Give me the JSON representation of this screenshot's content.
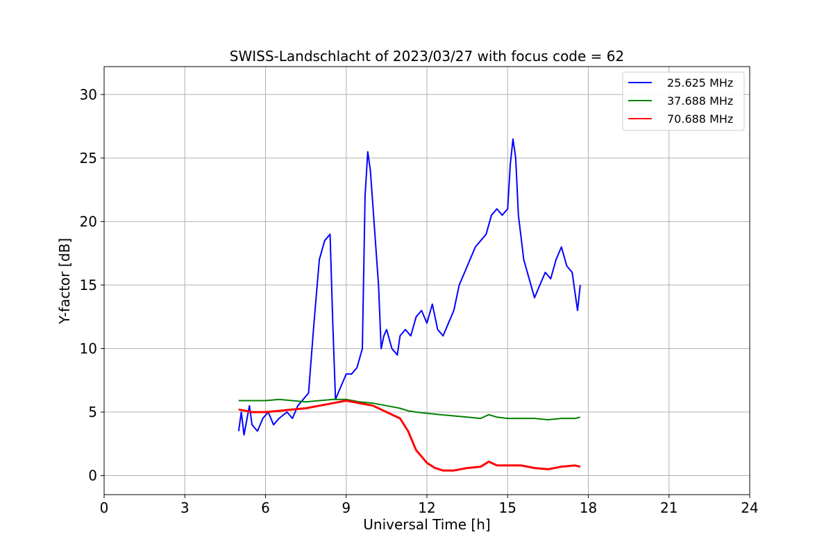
{
  "chart_data": {
    "type": "line",
    "title": "SWISS-Landschlacht of 2023/03/27 with focus code = 62",
    "xlabel": "Universal Time [h]",
    "ylabel": "Y-factor [dB]",
    "xlim": [
      0,
      24
    ],
    "ylim": [
      -1.5,
      32.2
    ],
    "xticks": [
      0,
      3,
      6,
      9,
      12,
      15,
      18,
      21,
      24
    ],
    "yticks": [
      0,
      5,
      10,
      15,
      20,
      25,
      30
    ],
    "grid": true,
    "legend_position": "top-right",
    "series": [
      {
        "name": "25.625 MHz",
        "color": "#0000ff",
        "x": [
          5.0,
          5.1,
          5.2,
          5.4,
          5.5,
          5.7,
          5.9,
          6.1,
          6.3,
          6.5,
          6.8,
          7.0,
          7.2,
          7.4,
          7.6,
          7.8,
          8.0,
          8.2,
          8.4,
          8.5,
          8.6,
          8.8,
          9.0,
          9.2,
          9.4,
          9.6,
          9.7,
          9.8,
          9.9,
          10.0,
          10.1,
          10.2,
          10.3,
          10.4,
          10.5,
          10.7,
          10.9,
          11.0,
          11.2,
          11.4,
          11.6,
          11.8,
          12.0,
          12.2,
          12.4,
          12.6,
          12.8,
          13.0,
          13.2,
          13.4,
          13.6,
          13.8,
          14.0,
          14.2,
          14.4,
          14.6,
          14.8,
          15.0,
          15.1,
          15.2,
          15.3,
          15.4,
          15.6,
          15.8,
          16.0,
          16.2,
          16.4,
          16.6,
          16.8,
          17.0,
          17.2,
          17.4,
          17.5,
          17.6,
          17.7
        ],
        "y": [
          3.5,
          5.0,
          3.2,
          5.5,
          4.0,
          3.5,
          4.5,
          5.0,
          4.0,
          4.5,
          5.0,
          4.5,
          5.5,
          6.0,
          6.5,
          12.0,
          17.0,
          18.5,
          19.0,
          12.0,
          6.0,
          7.0,
          8.0,
          8.0,
          8.5,
          10.0,
          22.0,
          25.5,
          24.0,
          21.0,
          18.0,
          15.0,
          10.0,
          11.0,
          11.5,
          10.0,
          9.5,
          11.0,
          11.5,
          11.0,
          12.5,
          13.0,
          12.0,
          13.5,
          11.5,
          11.0,
          12.0,
          13.0,
          15.0,
          16.0,
          17.0,
          18.0,
          18.5,
          19.0,
          20.5,
          21.0,
          20.5,
          21.0,
          24.5,
          26.5,
          25.0,
          20.5,
          17.0,
          15.5,
          14.0,
          15.0,
          16.0,
          15.5,
          17.0,
          18.0,
          16.5,
          16.0,
          14.5,
          13.0,
          15.0
        ]
      },
      {
        "name": "37.688 MHz",
        "color": "#008000",
        "x": [
          5.0,
          5.5,
          6.0,
          6.5,
          7.0,
          7.5,
          8.0,
          8.5,
          9.0,
          9.5,
          10.0,
          10.5,
          11.0,
          11.3,
          11.6,
          12.0,
          12.5,
          13.0,
          13.5,
          14.0,
          14.3,
          14.6,
          15.0,
          15.5,
          16.0,
          16.5,
          17.0,
          17.5,
          17.7
        ],
        "y": [
          5.9,
          5.9,
          5.9,
          6.0,
          5.9,
          5.8,
          5.9,
          6.0,
          6.0,
          5.8,
          5.7,
          5.5,
          5.3,
          5.1,
          5.0,
          4.9,
          4.8,
          4.7,
          4.6,
          4.5,
          4.8,
          4.6,
          4.5,
          4.5,
          4.5,
          4.4,
          4.5,
          4.5,
          4.6
        ]
      },
      {
        "name": "70.688 MHz",
        "color": "#ff0000",
        "x": [
          5.0,
          5.5,
          6.0,
          6.5,
          7.0,
          7.5,
          8.0,
          8.5,
          9.0,
          9.5,
          10.0,
          10.5,
          11.0,
          11.3,
          11.6,
          12.0,
          12.3,
          12.6,
          13.0,
          13.5,
          14.0,
          14.3,
          14.6,
          15.0,
          15.5,
          16.0,
          16.5,
          17.0,
          17.5,
          17.7
        ],
        "y": [
          5.2,
          5.0,
          5.0,
          5.1,
          5.2,
          5.3,
          5.5,
          5.7,
          5.9,
          5.7,
          5.5,
          5.0,
          4.5,
          3.5,
          2.0,
          1.0,
          0.6,
          0.4,
          0.4,
          0.6,
          0.7,
          1.1,
          0.8,
          0.8,
          0.8,
          0.6,
          0.5,
          0.7,
          0.8,
          0.7
        ]
      }
    ]
  }
}
